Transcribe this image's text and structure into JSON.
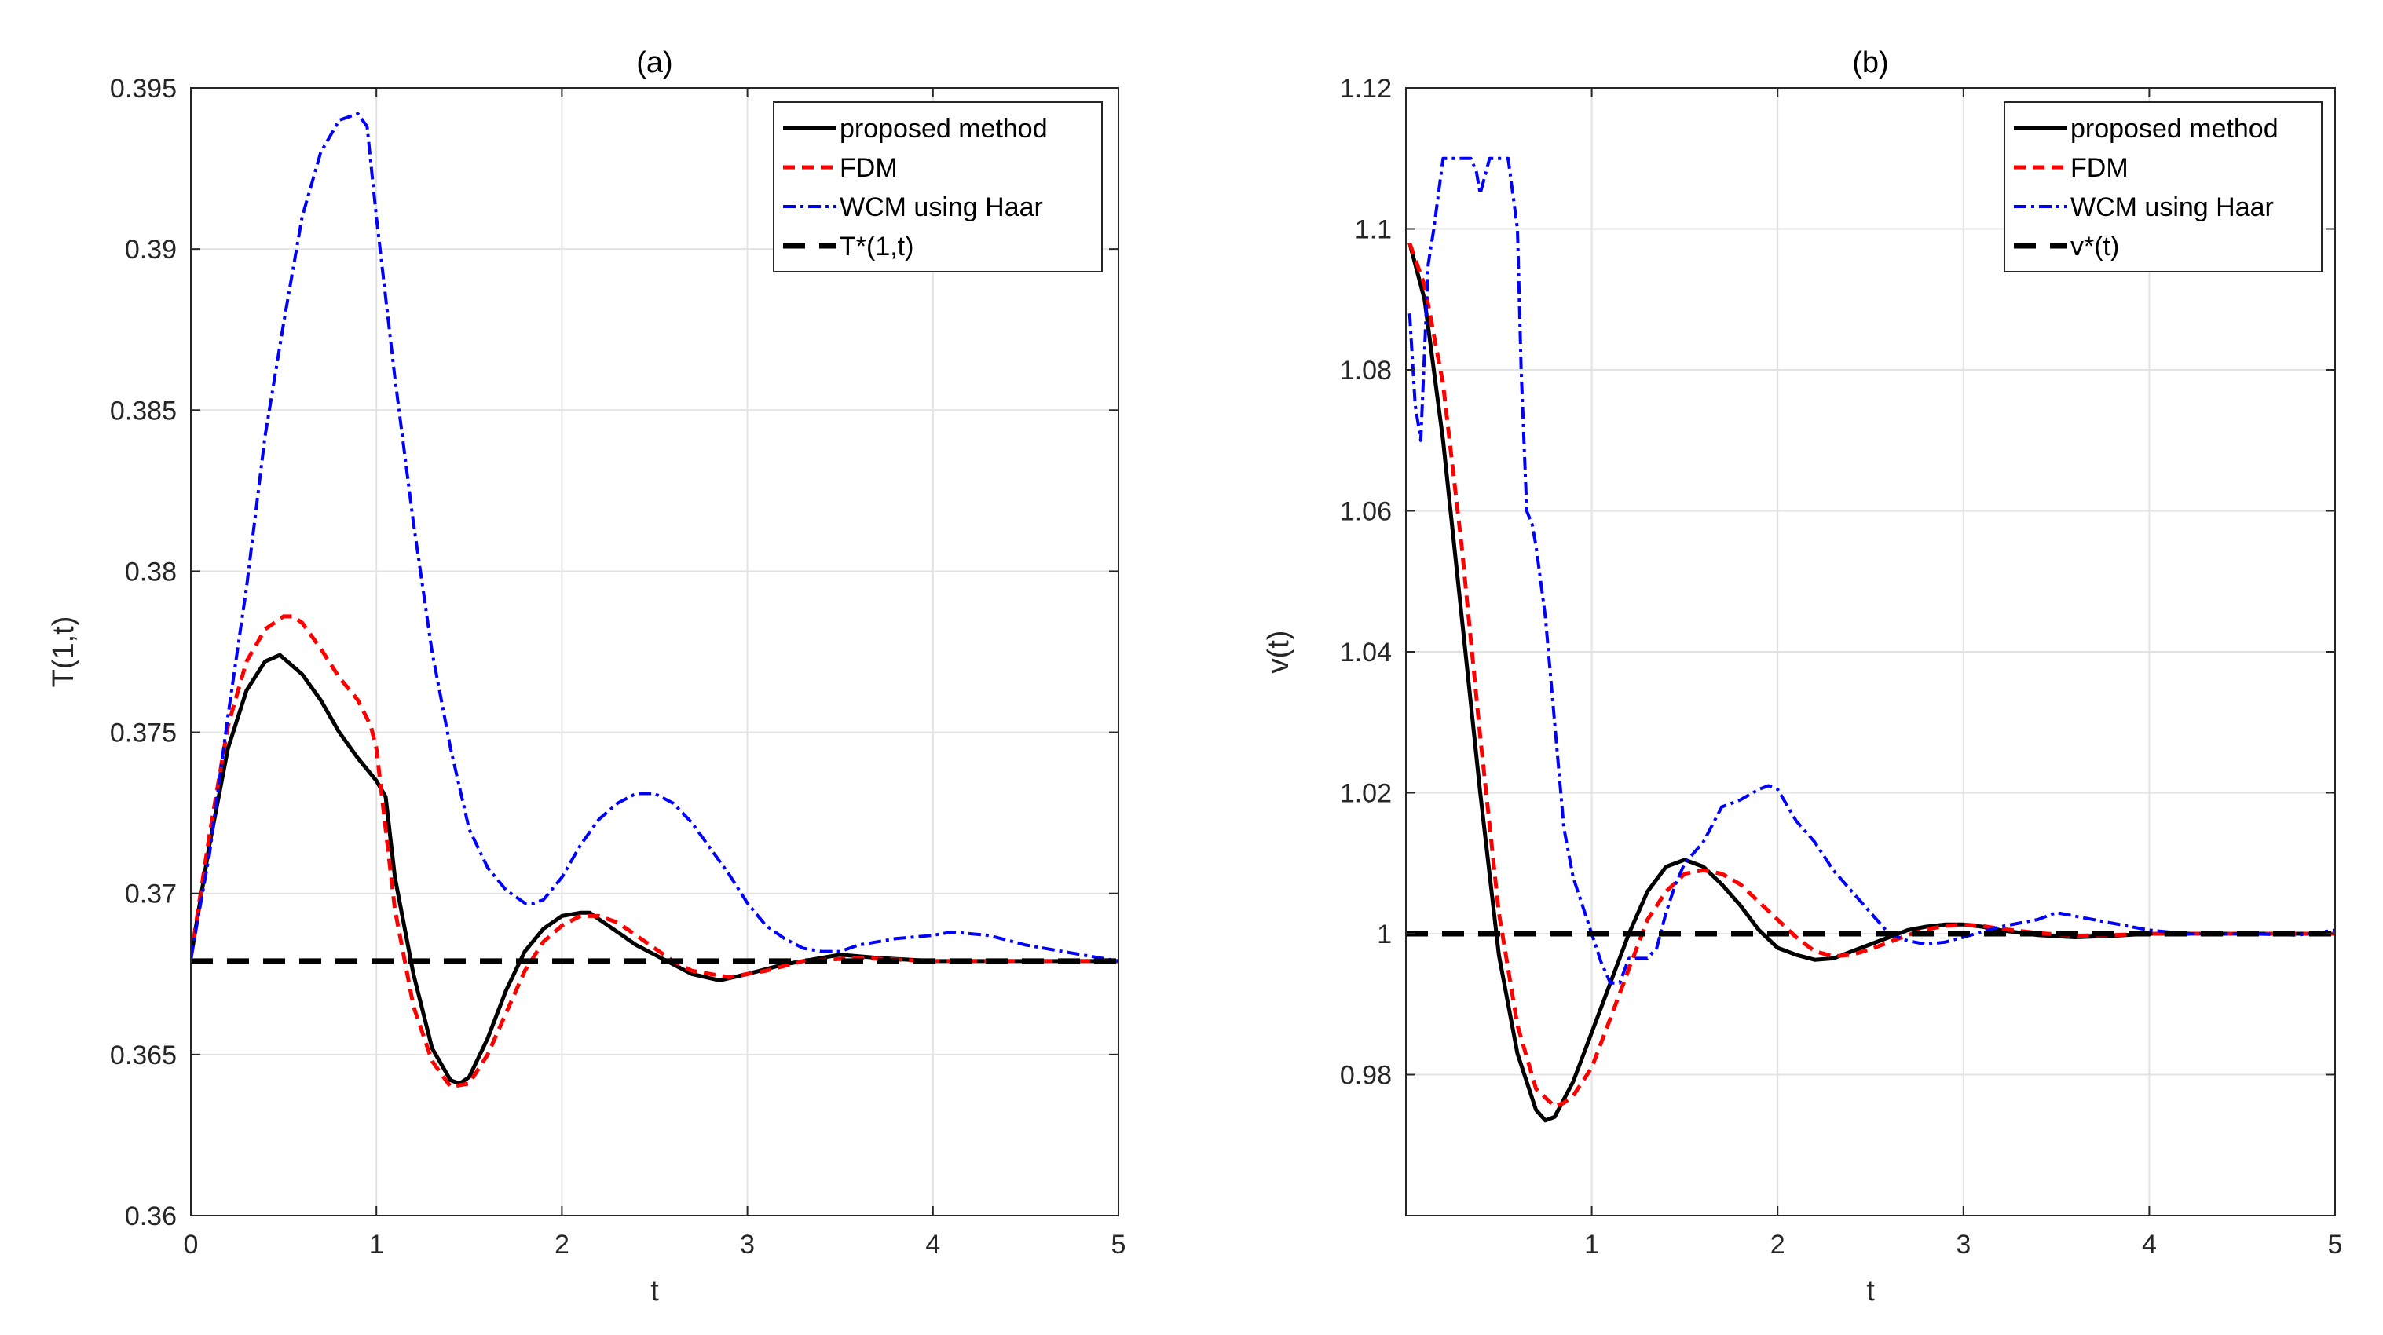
{
  "chart_data": [
    {
      "type": "line",
      "title": "(a)",
      "xlabel": "t",
      "ylabel": "T(1,t)",
      "xlim": [
        0,
        5
      ],
      "ylim": [
        0.36,
        0.395
      ],
      "xticks": [
        0,
        1,
        2,
        3,
        4,
        5
      ],
      "yticks": [
        0.36,
        0.365,
        0.37,
        0.375,
        0.38,
        0.385,
        0.39,
        0.395
      ],
      "xtick_labels": [
        "0",
        "1",
        "2",
        "3",
        "4",
        "5"
      ],
      "ytick_labels": [
        "0.36",
        "0.365",
        "0.37",
        "0.375",
        "0.38",
        "0.385",
        "0.39",
        "0.395"
      ],
      "grid": true,
      "legend_position": "top-right",
      "series": [
        {
          "name": "proposed method",
          "color": "#000000",
          "style": "solid",
          "x": [
            0,
            0.1,
            0.2,
            0.3,
            0.4,
            0.48,
            0.6,
            0.7,
            0.8,
            0.9,
            1.0,
            1.05,
            1.1,
            1.2,
            1.3,
            1.4,
            1.45,
            1.5,
            1.6,
            1.7,
            1.8,
            1.9,
            2.0,
            2.1,
            2.15,
            2.2,
            2.3,
            2.4,
            2.5,
            2.6,
            2.7,
            2.85,
            3.0,
            3.2,
            3.5,
            3.7,
            4.0,
            4.5,
            5.0
          ],
          "y": [
            0.368,
            0.3715,
            0.3745,
            0.3763,
            0.3772,
            0.3774,
            0.3768,
            0.376,
            0.375,
            0.3742,
            0.3735,
            0.373,
            0.3705,
            0.3675,
            0.3652,
            0.3642,
            0.3641,
            0.3643,
            0.3655,
            0.367,
            0.3682,
            0.3689,
            0.3693,
            0.3694,
            0.3694,
            0.3692,
            0.3688,
            0.3684,
            0.3681,
            0.3678,
            0.3675,
            0.3673,
            0.3675,
            0.3678,
            0.3681,
            0.368,
            0.3679,
            0.3679,
            0.3679
          ]
        },
        {
          "name": "FDM",
          "color": "#ff0000",
          "style": "dashed",
          "x": [
            0,
            0.1,
            0.2,
            0.3,
            0.4,
            0.5,
            0.55,
            0.6,
            0.7,
            0.8,
            0.9,
            0.97,
            1.0,
            1.05,
            1.1,
            1.2,
            1.3,
            1.4,
            1.5,
            1.6,
            1.7,
            1.8,
            1.9,
            2.0,
            2.1,
            2.2,
            2.3,
            2.4,
            2.5,
            2.6,
            2.7,
            2.9,
            3.1,
            3.3,
            3.6,
            4.0,
            4.5,
            5.0
          ],
          "y": [
            0.368,
            0.3718,
            0.3752,
            0.3772,
            0.3782,
            0.3786,
            0.3786,
            0.3784,
            0.3776,
            0.3767,
            0.376,
            0.3752,
            0.3745,
            0.372,
            0.3695,
            0.3665,
            0.3648,
            0.364,
            0.3641,
            0.365,
            0.3663,
            0.3676,
            0.3685,
            0.369,
            0.3693,
            0.3693,
            0.3691,
            0.3687,
            0.3683,
            0.3679,
            0.3676,
            0.3674,
            0.3676,
            0.3679,
            0.368,
            0.3679,
            0.3679,
            0.3679
          ]
        },
        {
          "name": "WCM using Haar",
          "color": "#0000ff",
          "style": "dashdot",
          "x": [
            0,
            0.1,
            0.2,
            0.3,
            0.4,
            0.5,
            0.6,
            0.7,
            0.8,
            0.9,
            0.95,
            1.0,
            1.1,
            1.2,
            1.3,
            1.4,
            1.5,
            1.6,
            1.7,
            1.8,
            1.85,
            1.9,
            2.0,
            2.1,
            2.2,
            2.3,
            2.4,
            2.5,
            2.6,
            2.7,
            2.8,
            2.9,
            3.0,
            3.1,
            3.2,
            3.3,
            3.4,
            3.5,
            3.6,
            3.8,
            4.0,
            4.1,
            4.3,
            4.5,
            4.7,
            5.0
          ],
          "y": [
            0.368,
            0.3712,
            0.3755,
            0.3795,
            0.3842,
            0.3877,
            0.391,
            0.393,
            0.394,
            0.3942,
            0.3938,
            0.391,
            0.386,
            0.3815,
            0.3775,
            0.3745,
            0.372,
            0.3708,
            0.3701,
            0.3697,
            0.3697,
            0.3698,
            0.3705,
            0.3715,
            0.3723,
            0.3728,
            0.3731,
            0.3731,
            0.3728,
            0.3722,
            0.3714,
            0.3706,
            0.3697,
            0.369,
            0.3686,
            0.3683,
            0.3682,
            0.3682,
            0.3684,
            0.3686,
            0.3687,
            0.3688,
            0.3687,
            0.3684,
            0.3682,
            0.3679
          ]
        },
        {
          "name": "T*(1,t)",
          "color": "#000000",
          "style": "thick-dashed",
          "x": [
            0,
            5
          ],
          "y": [
            0.3679,
            0.3679
          ]
        }
      ]
    },
    {
      "type": "line",
      "title": "(b)",
      "xlabel": "t",
      "ylabel": "v(t)",
      "xlim": [
        0,
        5
      ],
      "ylim": [
        0.96,
        1.12
      ],
      "xticks": [
        1,
        2,
        3,
        4,
        5
      ],
      "yticks": [
        0.98,
        1,
        1.02,
        1.04,
        1.06,
        1.08,
        1.1,
        1.12
      ],
      "xtick_labels": [
        "1",
        "2",
        "3",
        "4",
        "5"
      ],
      "ytick_labels": [
        "0.98",
        "1",
        "1.02",
        "1.04",
        "1.06",
        "1.08",
        "1.1",
        "1.12"
      ],
      "grid": true,
      "legend_position": "top-right",
      "series": [
        {
          "name": "proposed method",
          "color": "#000000",
          "style": "solid",
          "x": [
            0.02,
            0.1,
            0.2,
            0.3,
            0.4,
            0.5,
            0.6,
            0.7,
            0.75,
            0.8,
            0.9,
            1.0,
            1.1,
            1.2,
            1.3,
            1.4,
            1.5,
            1.6,
            1.7,
            1.8,
            1.9,
            2.0,
            2.1,
            2.2,
            2.3,
            2.4,
            2.5,
            2.6,
            2.7,
            2.8,
            2.9,
            3.0,
            3.1,
            3.2,
            3.4,
            3.6,
            3.8,
            4.0,
            4.5,
            5.0
          ],
          "y": [
            1.098,
            1.09,
            1.07,
            1.045,
            1.02,
            0.997,
            0.983,
            0.975,
            0.9735,
            0.974,
            0.979,
            0.986,
            0.993,
            1.0,
            1.006,
            1.0095,
            1.0105,
            1.0095,
            1.007,
            1.004,
            1.0005,
            0.998,
            0.997,
            0.9963,
            0.9965,
            0.9975,
            0.9985,
            0.9995,
            1.0005,
            1.001,
            1.0013,
            1.0013,
            1.001,
            1.0005,
            0.9998,
            0.9995,
            0.9997,
            1.0,
            1.0,
            1.0
          ]
        },
        {
          "name": "FDM",
          "color": "#ff0000",
          "style": "dashed",
          "x": [
            0.02,
            0.1,
            0.2,
            0.3,
            0.4,
            0.5,
            0.6,
            0.7,
            0.8,
            0.85,
            0.9,
            1.0,
            1.1,
            1.2,
            1.3,
            1.4,
            1.5,
            1.6,
            1.7,
            1.8,
            1.9,
            2.0,
            2.1,
            2.2,
            2.3,
            2.4,
            2.5,
            2.6,
            2.7,
            2.8,
            2.9,
            3.0,
            3.1,
            3.2,
            3.4,
            3.6,
            3.8,
            4.0,
            4.5,
            5.0
          ],
          "y": [
            1.098,
            1.092,
            1.078,
            1.055,
            1.028,
            1.003,
            0.987,
            0.978,
            0.9755,
            0.976,
            0.977,
            0.981,
            0.988,
            0.995,
            1.002,
            1.006,
            1.0085,
            1.009,
            1.0085,
            1.007,
            1.0045,
            1.002,
            0.9995,
            0.9975,
            0.9968,
            0.997,
            0.9978,
            0.9988,
            0.9998,
            1.0006,
            1.0011,
            1.0013,
            1.0011,
            1.0007,
            1.0001,
            0.9997,
            0.9998,
            1.0,
            1.0,
            1.0
          ]
        },
        {
          "name": "WCM using Haar",
          "color": "#0000ff",
          "style": "dashdot",
          "x": [
            0.02,
            0.05,
            0.08,
            0.12,
            0.15,
            0.2,
            0.25,
            0.3,
            0.35,
            0.38,
            0.4,
            0.45,
            0.5,
            0.55,
            0.6,
            0.62,
            0.65,
            0.68,
            0.7,
            0.75,
            0.8,
            0.85,
            0.9,
            0.95,
            1.0,
            1.05,
            1.1,
            1.15,
            1.2,
            1.25,
            1.3,
            1.35,
            1.4,
            1.45,
            1.5,
            1.6,
            1.7,
            1.8,
            1.9,
            1.95,
            2.0,
            2.1,
            2.2,
            2.3,
            2.4,
            2.5,
            2.6,
            2.7,
            2.8,
            2.9,
            3.0,
            3.2,
            3.4,
            3.5,
            3.6,
            3.8,
            4.0,
            4.2,
            4.5,
            4.8,
            5.0
          ],
          "y": [
            1.088,
            1.075,
            1.07,
            1.095,
            1.1,
            1.11,
            1.11,
            1.11,
            1.11,
            1.108,
            1.105,
            1.11,
            1.11,
            1.11,
            1.1,
            1.08,
            1.06,
            1.058,
            1.055,
            1.045,
            1.03,
            1.015,
            1.008,
            1.004,
            1.0,
            0.996,
            0.993,
            0.993,
            0.9965,
            0.9965,
            0.9965,
            0.998,
            1.003,
            1.007,
            1.01,
            1.013,
            1.018,
            1.019,
            1.0205,
            1.021,
            1.0205,
            1.016,
            1.013,
            1.009,
            1.006,
            1.003,
            1.0,
            0.999,
            0.9985,
            0.9988,
            0.9995,
            1.001,
            1.002,
            1.003,
            1.0025,
            1.0015,
            1.0005,
            1.0,
            1.0,
            0.9998,
            1.0005
          ]
        },
        {
          "name": "v*(t)",
          "color": "#000000",
          "style": "thick-dashed",
          "x": [
            0,
            5
          ],
          "y": [
            1.0,
            1.0
          ]
        }
      ]
    }
  ]
}
